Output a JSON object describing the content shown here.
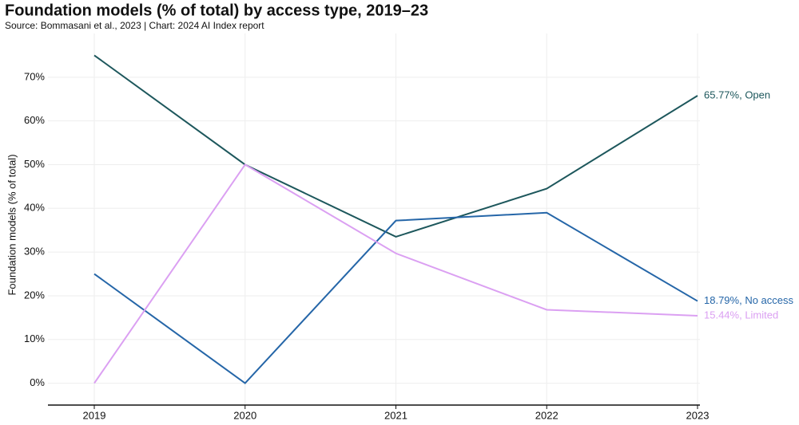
{
  "chart_data": {
    "type": "line",
    "title": "Foundation models (% of total) by access type, 2019–23",
    "subtitle": "Source: Bommasani et al., 2023 | Chart: 2024 AI Index report",
    "y_label": "Foundation models (% of total)",
    "categories": [
      "2019",
      "2020",
      "2021",
      "2022",
      "2023"
    ],
    "series": [
      {
        "name": "Open",
        "color": "#1d575c",
        "values": [
          75,
          50,
          33.5,
          44.5,
          65.77
        ],
        "value_labels": [
          null,
          null,
          null,
          null,
          "65.77%, Open"
        ]
      },
      {
        "name": "No access",
        "color": "#2566a8",
        "values": [
          25,
          0,
          37.2,
          39,
          18.79
        ],
        "value_labels": [
          null,
          null,
          null,
          null,
          "18.79%, No access"
        ]
      },
      {
        "name": "Limited",
        "color": "#dba0f2",
        "values": [
          0,
          50,
          29.7,
          16.8,
          15.44
        ],
        "value_labels": [
          null,
          null,
          null,
          null,
          "15.44%, Limited"
        ]
      }
    ],
    "ylim": [
      -5,
      80
    ],
    "yticks": [
      {
        "value": 0,
        "label": "0%"
      },
      {
        "value": 10,
        "label": "10%"
      },
      {
        "value": 20,
        "label": "20%"
      },
      {
        "value": 30,
        "label": "30%"
      },
      {
        "value": 40,
        "label": "40%"
      },
      {
        "value": 50,
        "label": "50%"
      },
      {
        "value": 60,
        "label": "60%"
      },
      {
        "value": 70,
        "label": "70%"
      }
    ],
    "grid": true
  }
}
